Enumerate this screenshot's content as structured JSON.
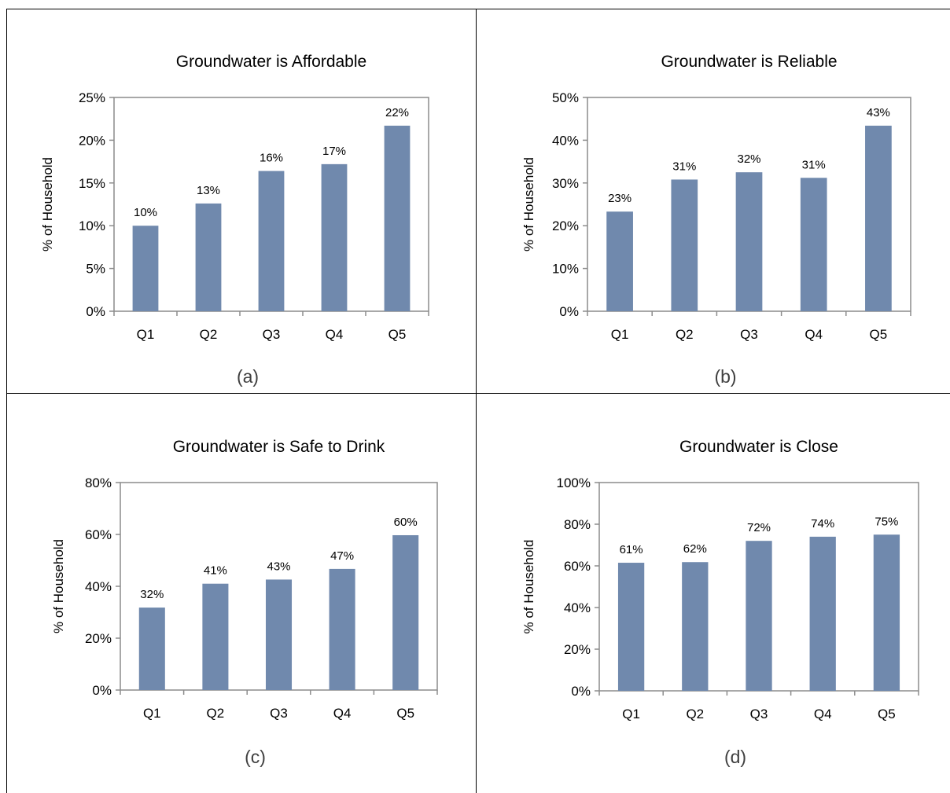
{
  "chart_data": [
    {
      "type": "bar",
      "title": "Groundwater is Affordable",
      "caption": "(a)",
      "ylabel": "% of Household",
      "xlabel": "",
      "categories": [
        "Q1",
        "Q2",
        "Q3",
        "Q4",
        "Q5"
      ],
      "values": [
        10,
        12.6,
        16.4,
        17.2,
        21.7
      ],
      "data_labels": [
        "10%",
        "13%",
        "16%",
        "17%",
        "22%"
      ],
      "ylim": [
        0,
        25
      ],
      "yticks": [
        0,
        5,
        10,
        15,
        20,
        25
      ],
      "ytick_labels": [
        "0%",
        "5%",
        "10%",
        "15%",
        "20%",
        "25%"
      ],
      "grid": false,
      "legend": "none",
      "bar_color": "#7089ad"
    },
    {
      "type": "bar",
      "title": "Groundwater is Reliable",
      "caption": "(b)",
      "ylabel": "% of Household",
      "xlabel": "",
      "categories": [
        "Q1",
        "Q2",
        "Q3",
        "Q4",
        "Q5"
      ],
      "values": [
        23.3,
        30.8,
        32.5,
        31.2,
        43.4
      ],
      "data_labels": [
        "23%",
        "31%",
        "32%",
        "31%",
        "43%"
      ],
      "ylim": [
        0,
        50
      ],
      "yticks": [
        0,
        10,
        20,
        30,
        40,
        50
      ],
      "ytick_labels": [
        "0%",
        "10%",
        "20%",
        "30%",
        "40%",
        "50%"
      ],
      "grid": false,
      "legend": "none",
      "bar_color": "#7089ad"
    },
    {
      "type": "bar",
      "title": "Groundwater is Safe to Drink",
      "caption": "(c)",
      "ylabel": "% of Household",
      "xlabel": "",
      "categories": [
        "Q1",
        "Q2",
        "Q3",
        "Q4",
        "Q5"
      ],
      "values": [
        31.8,
        41,
        42.6,
        46.7,
        59.7
      ],
      "data_labels": [
        "32%",
        "41%",
        "43%",
        "47%",
        "60%"
      ],
      "ylim": [
        0,
        80
      ],
      "yticks": [
        0,
        20,
        40,
        60,
        80
      ],
      "ytick_labels": [
        "0%",
        "20%",
        "40%",
        "60%",
        "80%"
      ],
      "grid": false,
      "legend": "none",
      "bar_color": "#7089ad"
    },
    {
      "type": "bar",
      "title": "Groundwater is Close",
      "caption": "(d)",
      "ylabel": "% of Household",
      "xlabel": "",
      "categories": [
        "Q1",
        "Q2",
        "Q3",
        "Q4",
        "Q5"
      ],
      "values": [
        61.5,
        61.8,
        72,
        74,
        75
      ],
      "data_labels": [
        "61%",
        "62%",
        "72%",
        "74%",
        "75%"
      ],
      "ylim": [
        0,
        100
      ],
      "yticks": [
        0,
        20,
        40,
        60,
        80,
        100
      ],
      "ytick_labels": [
        "0%",
        "20%",
        "40%",
        "60%",
        "80%",
        "100%"
      ],
      "grid": false,
      "legend": "none",
      "bar_color": "#7089ad"
    }
  ]
}
